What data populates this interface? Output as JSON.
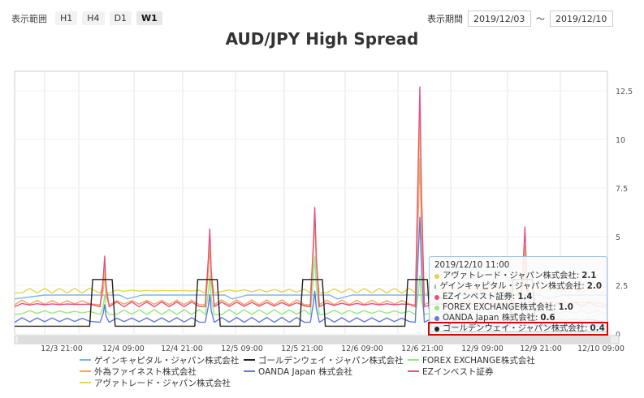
{
  "toolbar": {
    "range_label": "表示範囲",
    "ranges": [
      "H1",
      "H4",
      "D1",
      "W1"
    ],
    "active_range": "W1",
    "period_label": "表示期間",
    "start_date": "2019/12/03",
    "tilde": "～",
    "end_date": "2019/12/10"
  },
  "colors": {
    "gain": "#7cb5ec",
    "goldenway": "#222222",
    "forex": "#90ed7d",
    "gaitame": "#f7a35c",
    "oanda": "#6677dd",
    "ez": "#e4517e",
    "avatrade": "#e4d354"
  },
  "tooltip": {
    "time": "2019/12/10 11:00",
    "rows": [
      {
        "name": "アヴァトレード・ジャパン株式会社:",
        "value": "2.1",
        "color": "#e4d354"
      },
      {
        "name": "ゲインキャピタル・ジャパン株式会社:",
        "value": "2.0",
        "color": "#7cb5ec"
      },
      {
        "name": "EZインベスト証券:",
        "value": "1.4",
        "color": "#e4517e"
      },
      {
        "name": "FOREX EXCHANGE株式会社:",
        "value": "1.0",
        "color": "#90ed7d"
      },
      {
        "name": "OANDA Japan 株式会社:",
        "value": "0.6",
        "color": "#6677dd"
      },
      {
        "name": "ゴールデンウェイ・ジャパン株式会社:",
        "value": "0.4",
        "color": "#222222"
      }
    ]
  },
  "chart_data": {
    "type": "line",
    "title": "AUD/JPY High Spread",
    "xlabel": "",
    "ylabel": "",
    "ylim": [
      0,
      13.5
    ],
    "yticks": [
      "0",
      "2.5",
      "5",
      "7.5",
      "10",
      "12.5"
    ],
    "xticks": [
      "12/3 21:00",
      "12/4 09:00",
      "12/4 21:00",
      "12/5 09:00",
      "12/5 21:00",
      "12/6 09:00",
      "12/6 21:00",
      "12/9 09:00",
      "12/9 21:00",
      "12/10 09:00"
    ],
    "grid": true,
    "legend_position": "bottom",
    "legend_rows": [
      [
        "gain",
        "goldenway",
        "forex"
      ],
      [
        "gaitame",
        "oanda",
        "ez"
      ],
      [
        "avatrade"
      ]
    ],
    "series": [
      {
        "key": "gain",
        "name": "ゲインキャピタル・ジャパン株式会社",
        "base": 2.0,
        "alt": 1.8,
        "points": [
          [
            0,
            1.8
          ],
          [
            4,
            2.0
          ],
          [
            14,
            2.0
          ],
          [
            15,
            1.8
          ],
          [
            17,
            2.0
          ],
          [
            28,
            2.0
          ],
          [
            29,
            1.8
          ],
          [
            31,
            2.0
          ],
          [
            42,
            2.0
          ],
          [
            43,
            1.8
          ],
          [
            45,
            2.0
          ],
          [
            56,
            2.0
          ],
          [
            57,
            1.8
          ],
          [
            59,
            2.0
          ],
          [
            70,
            2.0
          ],
          [
            71,
            1.8
          ],
          [
            73,
            2.0
          ],
          [
            79,
            2.0
          ]
        ]
      },
      {
        "key": "goldenway",
        "name": "ゴールデンウェイ・ジャパン株式会社",
        "points": [
          [
            0,
            0.4
          ],
          [
            10,
            0.4
          ],
          [
            10.4,
            2.8
          ],
          [
            13,
            2.8
          ],
          [
            13.4,
            0.4
          ],
          [
            24,
            0.4
          ],
          [
            24.4,
            2.8
          ],
          [
            27,
            2.8
          ],
          [
            27.4,
            0.4
          ],
          [
            38,
            0.4
          ],
          [
            38.4,
            2.8
          ],
          [
            41,
            2.8
          ],
          [
            41.4,
            0.4
          ],
          [
            52,
            0.4
          ],
          [
            52.4,
            2.8
          ],
          [
            55,
            2.8
          ],
          [
            55.4,
            0.4
          ],
          [
            66,
            0.4
          ],
          [
            66.4,
            2.8
          ],
          [
            69,
            2.8
          ],
          [
            69.4,
            0.4
          ],
          [
            79,
            0.4
          ]
        ]
      },
      {
        "key": "forex",
        "name": "FOREX EXCHANGE株式会社",
        "points": [
          [
            0,
            1.0
          ],
          [
            79,
            1.0
          ]
        ],
        "spikes": [
          [
            12,
            2.0
          ],
          [
            26,
            3.0
          ],
          [
            40,
            4.0
          ],
          [
            54,
            3.0
          ],
          [
            68,
            2.0
          ]
        ]
      },
      {
        "key": "gaitame",
        "name": "外為ファイネスト株式会社",
        "points": [
          [
            0,
            1.5
          ],
          [
            79,
            1.5
          ]
        ],
        "spikes": [
          [
            12,
            3.2
          ],
          [
            26,
            4.5
          ],
          [
            40,
            6.0
          ],
          [
            54,
            9.0
          ],
          [
            68,
            4.0
          ]
        ]
      },
      {
        "key": "oanda",
        "name": "OANDA Japan 株式会社",
        "points": [
          [
            0,
            0.6
          ],
          [
            79,
            0.6
          ]
        ],
        "spikes": [
          [
            12,
            1.5
          ],
          [
            26,
            2.0
          ],
          [
            40,
            2.2
          ],
          [
            54,
            6.0
          ],
          [
            68,
            2.0
          ]
        ]
      },
      {
        "key": "ez",
        "name": "EZインベスト証券",
        "points": [
          [
            0,
            1.4
          ],
          [
            79,
            1.4
          ]
        ],
        "spikes": [
          [
            12,
            4.0
          ],
          [
            26,
            5.4
          ],
          [
            40,
            6.5
          ],
          [
            54,
            12.7
          ],
          [
            68,
            5.5
          ]
        ]
      },
      {
        "key": "avatrade",
        "name": "アヴァトレード・ジャパン株式会社",
        "points": [
          [
            0,
            2.1
          ],
          [
            79,
            2.1
          ]
        ],
        "spikes": [
          [
            12,
            3.5
          ],
          [
            26,
            5.0
          ],
          [
            40,
            6.2
          ],
          [
            54,
            11.0
          ],
          [
            68,
            4.5
          ]
        ]
      }
    ]
  }
}
